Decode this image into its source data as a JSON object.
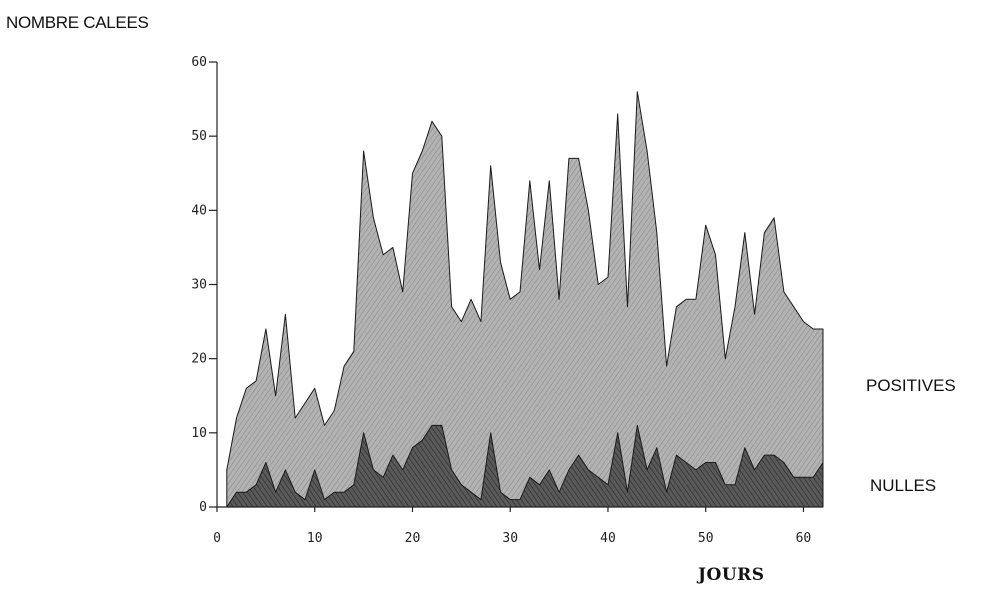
{
  "labels": {
    "y_title": "NOMBRE CALEES",
    "x_title": "JOURS",
    "positives": "POSITIVES",
    "nulles": "NULLES"
  },
  "colors": {
    "positives_fill": "#a6a6a6",
    "nulles_fill": "#4f4f4f",
    "axis": "#222222"
  },
  "chart_data": {
    "type": "area",
    "xlabel": "JOURS",
    "ylabel": "NOMBRE CALEES",
    "xlim": [
      0,
      62
    ],
    "ylim": [
      0,
      60
    ],
    "xticks": [
      0,
      10,
      20,
      30,
      40,
      50,
      60
    ],
    "yticks": [
      0,
      10,
      20,
      30,
      40,
      50,
      60
    ],
    "x": [
      1,
      2,
      3,
      4,
      5,
      6,
      7,
      8,
      9,
      10,
      11,
      12,
      13,
      14,
      15,
      16,
      17,
      18,
      19,
      20,
      21,
      22,
      23,
      24,
      25,
      26,
      27,
      28,
      29,
      30,
      31,
      32,
      33,
      34,
      35,
      36,
      37,
      38,
      39,
      40,
      41,
      42,
      43,
      44,
      45,
      46,
      47,
      48,
      49,
      50,
      51,
      52,
      53,
      54,
      55,
      56,
      57,
      58,
      59,
      60,
      61,
      62
    ],
    "series": [
      {
        "name": "POSITIVES",
        "values": [
          5,
          12,
          16,
          17,
          24,
          15,
          26,
          12,
          14,
          16,
          11,
          13,
          19,
          21,
          48,
          39,
          34,
          35,
          29,
          45,
          48,
          52,
          50,
          27,
          25,
          28,
          25,
          46,
          33,
          28,
          29,
          44,
          32,
          44,
          28,
          47,
          47,
          40,
          30,
          31,
          53,
          27,
          56,
          48,
          37,
          19,
          27,
          28,
          28,
          38,
          34,
          20,
          27,
          37,
          26,
          37,
          39,
          29,
          27,
          25,
          24,
          24
        ]
      },
      {
        "name": "NULLES",
        "values": [
          0,
          2,
          2,
          3,
          6,
          2,
          5,
          2,
          1,
          5,
          1,
          2,
          2,
          3,
          10,
          5,
          4,
          7,
          5,
          8,
          9,
          11,
          11,
          5,
          3,
          2,
          1,
          10,
          2,
          1,
          1,
          4,
          3,
          5,
          2,
          5,
          7,
          5,
          4,
          3,
          10,
          2,
          11,
          5,
          8,
          2,
          7,
          6,
          5,
          6,
          6,
          3,
          3,
          8,
          5,
          7,
          7,
          6,
          4,
          4,
          4,
          6
        ]
      }
    ],
    "grid": false,
    "legend": "right"
  }
}
